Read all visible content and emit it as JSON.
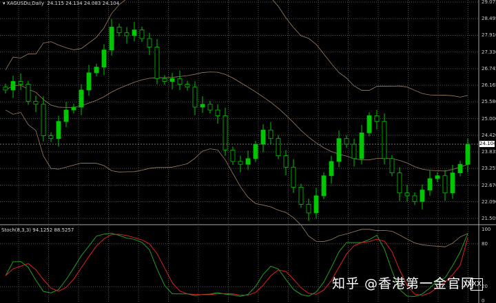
{
  "header": {
    "symbol_label": "XAGUSDu,Daily",
    "ohlc": "24.115 24.134 24.083 24.104"
  },
  "stoch_header": {
    "label": "Stoch(8,3,3)",
    "values": "94.1252 88.5257"
  },
  "watermark": "知乎 @香港第一金官网",
  "colors": {
    "background": "#000000",
    "bull": "#00c800",
    "bear": "#000000",
    "candle_outline": "#00c800",
    "bands": "#a08060",
    "stoch_main": "#20a020",
    "stoch_signal": "#e02020",
    "grid": "#555555"
  },
  "chart_data": [
    {
      "type": "candlestick",
      "title": "XAGUSDu,Daily",
      "indicators": [
        "Bollinger Bands"
      ],
      "ylim": [
        21.505,
        29.075
      ],
      "y_ticks": [
        "29.075",
        "28.495",
        "27.910",
        "27.330",
        "26.745",
        "26.165",
        "25.580",
        "25.000",
        "24.420",
        "23.835",
        "23.255",
        "22.670",
        "22.090",
        "21.505"
      ],
      "current_price": "24.104",
      "grid": true,
      "closes": [
        26.0,
        26.3,
        26.2,
        25.6,
        25.5,
        24.4,
        24.3,
        24.9,
        25.3,
        25.4,
        26.0,
        26.6,
        26.8,
        27.4,
        28.2,
        28.0,
        27.9,
        28.1,
        27.8,
        27.5,
        26.4,
        26.3,
        26.4,
        26.2,
        26.1,
        25.4,
        25.5,
        25.3,
        25.1,
        23.9,
        23.5,
        23.4,
        23.6,
        24.1,
        24.6,
        24.3,
        23.7,
        23.3,
        22.6,
        22.0,
        21.7,
        22.3,
        23.0,
        23.5,
        24.3,
        24.1,
        23.6,
        24.5,
        25.1,
        24.9,
        23.6,
        23.1,
        22.4,
        22.3,
        22.1,
        22.5,
        22.9,
        23.0,
        22.4,
        23.1,
        23.4,
        24.1
      ]
    },
    {
      "type": "line",
      "title": "Stoch(8,3,3)",
      "ylim": [
        0,
        100
      ],
      "y_ticks": [
        "100",
        "80",
        "20",
        "0"
      ],
      "last_values": [
        94.1252,
        88.5257
      ]
    }
  ]
}
